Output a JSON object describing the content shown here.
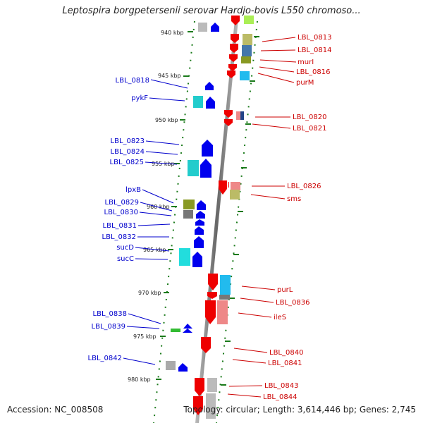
{
  "title": "Leptospira borgpetersenii serovar Hardjo-bovis L550 chromoso...",
  "footer": {
    "accession": "Accession: NC_008508",
    "topology": "Topology: circular; Length: 3,614,446 bp; Genes: 2,745"
  },
  "scale_labels": [
    "940 kbp",
    "945 kbp",
    "950 kbp",
    "955 kbp",
    "960 kbp",
    "965 kbp",
    "970 kbp",
    "975 kbp",
    "980 kbp"
  ],
  "left_labels": [
    "LBL_0818",
    "pykF",
    "LBL_0823",
    "LBL_0824",
    "LBL_0825",
    "lpxB",
    "LBL_0829",
    "LBL_0830",
    "LBL_0831",
    "LBL_0832",
    "sucD",
    "sucC",
    "LBL_0838",
    "LBL_0839",
    "LBL_0842"
  ],
  "right_labels": [
    "LBL_0813",
    "LBL_0814",
    "murI",
    "LBL_0816",
    "purM",
    "LBL_0820",
    "LBL_0821",
    "LBL_0826",
    "sms",
    "purL",
    "LBL_0836",
    "ileS",
    "LBL_0840",
    "LBL_0841",
    "LBL_0843",
    "LBL_0844"
  ],
  "colors": {
    "forward_strand": "#0000ee",
    "reverse_strand": "#ee0000",
    "label_left": "#0000cc",
    "label_right": "#cc0000",
    "backbone": "#888888",
    "scale_ticks": "#1a7a1a"
  }
}
